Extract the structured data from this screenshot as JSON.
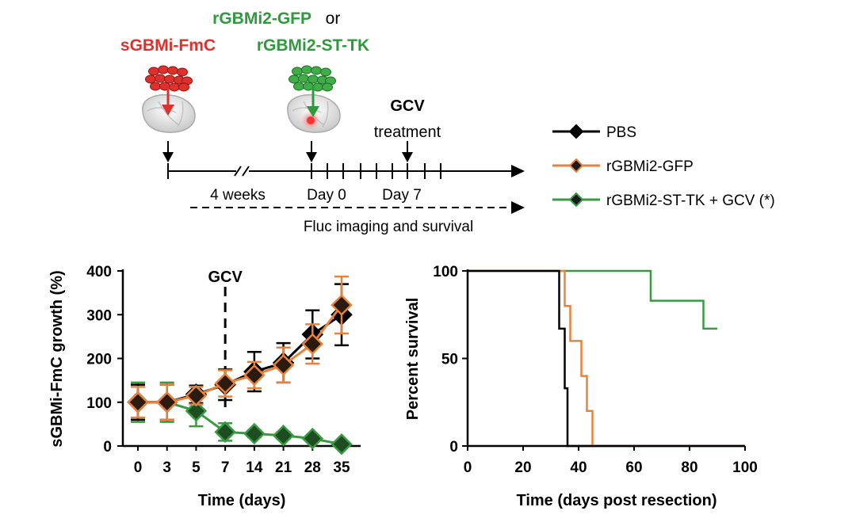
{
  "colors": {
    "pbs": "#000000",
    "gfp": "#e8823a",
    "sttk": "#3a9a44",
    "red_label": "#e0302b",
    "green_label": "#2f9a3c"
  },
  "schematic": {
    "label_sgbmi": "sGBMi-FmC",
    "label_rgbmi_line1_green": "rGBMi2-GFP",
    "label_rgbmi_line1_or": "or",
    "label_rgbmi_line2": "rGBMi2-ST-TK",
    "gcv_title": "GCV",
    "gcv_sub": "treatment",
    "tick_4weeks": "4 weeks",
    "tick_day0": "Day 0",
    "tick_day7": "Day 7",
    "imaging_label": "Fluc imaging and survival",
    "icon_cells": "cell-cluster-icon",
    "icon_brain": "mouse-brain-icon"
  },
  "legend": {
    "items": [
      {
        "label": "PBS",
        "series": "pbs"
      },
      {
        "label": "rGBMi2-GFP",
        "series": "gfp"
      },
      {
        "label": "rGBMi2-ST-TK + GCV (*)",
        "series": "sttk"
      }
    ]
  },
  "chart_data": [
    {
      "type": "line",
      "title": "",
      "xlabel": "Time (days)",
      "ylabel": "sGBMi-FmC growth (%)",
      "categories": [
        "0",
        "3",
        "5",
        "7",
        "14",
        "21",
        "28",
        "35"
      ],
      "ylim": [
        0,
        400
      ],
      "yticks": [
        "0",
        "100",
        "200",
        "300",
        "400"
      ],
      "annotation": "GCV",
      "annotation_at_category": "7",
      "series": [
        {
          "name": "PBS",
          "key": "pbs",
          "values": [
            100,
            100,
            118,
            140,
            170,
            190,
            255,
            300
          ],
          "errors": [
            40,
            40,
            20,
            35,
            45,
            45,
            55,
            70
          ]
        },
        {
          "name": "rGBMi2-GFP",
          "key": "gfp",
          "values": [
            100,
            100,
            115,
            143,
            162,
            185,
            233,
            322
          ],
          "errors": [
            35,
            40,
            20,
            30,
            30,
            40,
            45,
            65
          ]
        },
        {
          "name": "rGBMi2-ST-TK + GCV (*)",
          "key": "sttk",
          "values": [
            100,
            100,
            80,
            32,
            28,
            24,
            17,
            4
          ],
          "errors": [
            45,
            45,
            35,
            20,
            8,
            8,
            6,
            4
          ]
        }
      ]
    },
    {
      "type": "line",
      "subtype": "step",
      "title": "",
      "xlabel": "Time (days post resection)",
      "ylabel": "Percent survival",
      "xlim": [
        0,
        100
      ],
      "ylim": [
        0,
        100
      ],
      "xticks": [
        "0",
        "20",
        "40",
        "60",
        "80",
        "100"
      ],
      "yticks": [
        "0",
        "50",
        "100"
      ],
      "series": [
        {
          "name": "PBS",
          "key": "pbs",
          "steps": [
            [
              0,
              100
            ],
            [
              33,
              100
            ],
            [
              33,
              67
            ],
            [
              35,
              67
            ],
            [
              35,
              33
            ],
            [
              36,
              33
            ],
            [
              36,
              0
            ],
            [
              100,
              0
            ]
          ]
        },
        {
          "name": "rGBMi2-GFP",
          "key": "gfp",
          "steps": [
            [
              0,
              100
            ],
            [
              35,
              100
            ],
            [
              35,
              80
            ],
            [
              37,
              80
            ],
            [
              37,
              60
            ],
            [
              41,
              60
            ],
            [
              41,
              40
            ],
            [
              43,
              40
            ],
            [
              43,
              20
            ],
            [
              45,
              20
            ],
            [
              45,
              0
            ],
            [
              100,
              0
            ]
          ]
        },
        {
          "name": "rGBMi2-ST-TK + GCV (*)",
          "key": "sttk",
          "steps": [
            [
              0,
              100
            ],
            [
              66,
              100
            ],
            [
              66,
              83
            ],
            [
              85,
              83
            ],
            [
              85,
              67
            ],
            [
              90,
              67
            ]
          ]
        }
      ]
    }
  ]
}
